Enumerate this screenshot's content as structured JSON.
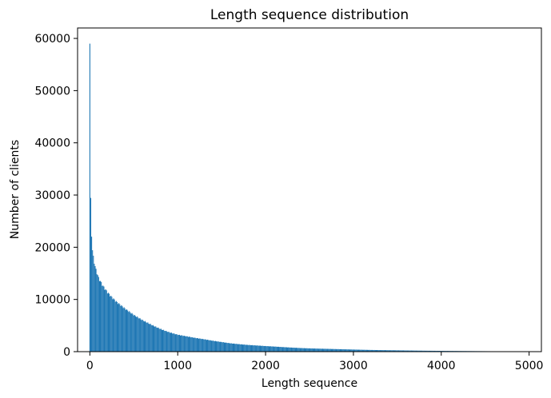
{
  "chart_data": {
    "type": "bar",
    "title": "Length sequence distribution",
    "xlabel": "Length sequence",
    "ylabel": "Number of clients",
    "xlim": [
      -140,
      5140
    ],
    "ylim": [
      0,
      62000
    ],
    "x_ticks": [
      0,
      1000,
      2000,
      3000,
      4000,
      5000
    ],
    "y_ticks": [
      0,
      10000,
      20000,
      30000,
      40000,
      50000,
      60000
    ],
    "grid": false,
    "legend": "none",
    "bar_color": "#1f77b4",
    "bin_width": 10,
    "shape_points": {
      "x": [
        0,
        10,
        20,
        30,
        40,
        50,
        60,
        70,
        80,
        90,
        100,
        150,
        200,
        250,
        300,
        400,
        500,
        600,
        700,
        800,
        900,
        1000,
        1200,
        1400,
        1600,
        1800,
        2000,
        2200,
        2400,
        2600,
        2800,
        3000,
        3200,
        3400,
        3600,
        3800,
        4000,
        4200,
        4400,
        4600,
        4800,
        5000
      ],
      "y": [
        59000,
        29000,
        22500,
        19500,
        18200,
        17300,
        16500,
        15800,
        15300,
        14800,
        14300,
        12800,
        11600,
        10600,
        9700,
        8200,
        6900,
        5900,
        5100,
        4400,
        3800,
        3300,
        2600,
        2050,
        1620,
        1300,
        1050,
        860,
        700,
        580,
        480,
        400,
        330,
        270,
        220,
        180,
        150,
        120,
        95,
        75,
        60,
        50
      ]
    }
  }
}
